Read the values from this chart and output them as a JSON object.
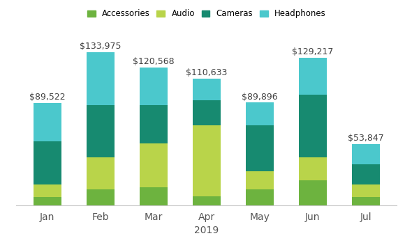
{
  "months": [
    "Jan",
    "Feb",
    "Mar",
    "Apr",
    "May",
    "Jun",
    "Jul"
  ],
  "totals": [
    89522,
    133975,
    120568,
    110633,
    89896,
    129217,
    53847
  ],
  "series": {
    "Accessories": [
      7000,
      14000,
      16000,
      8000,
      14000,
      22000,
      7000
    ],
    "Audio": [
      11000,
      28000,
      38000,
      62000,
      16000,
      20000,
      11000
    ],
    "Cameras": [
      38000,
      46000,
      34000,
      22000,
      40000,
      55000,
      18000
    ],
    "Headphones": [
      33522,
      45975,
      32568,
      18633,
      19896,
      32217,
      17847
    ]
  },
  "colors": {
    "Accessories": "#6db33f",
    "Audio": "#b9d44a",
    "Cameras": "#178a70",
    "Headphones": "#4bc8cc"
  },
  "xlabel": "2019",
  "ylim": [
    0,
    155000
  ],
  "legend_order": [
    "Accessories",
    "Audio",
    "Cameras",
    "Headphones"
  ],
  "total_label_fontsize": 9,
  "axis_label_fontsize": 10,
  "tick_fontsize": 10,
  "bar_width": 0.52,
  "background_color": "#ffffff"
}
